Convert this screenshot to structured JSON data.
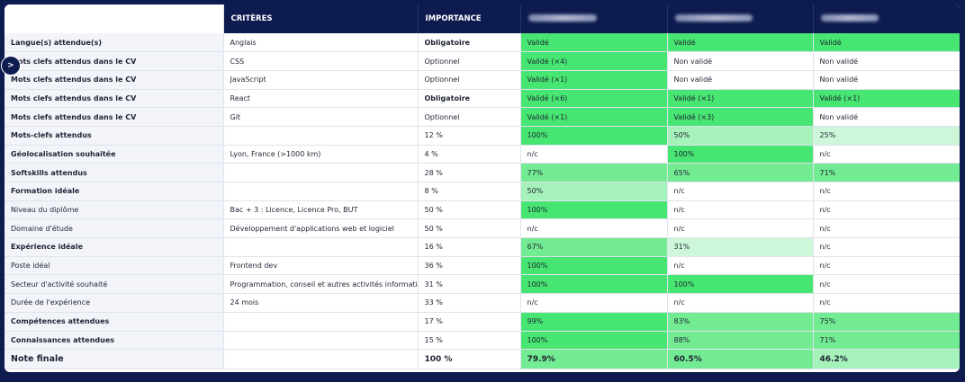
{
  "colors": {
    "navy": "#0d1b4f",
    "green_strong": "#47e572",
    "green_mid": "#72eb92",
    "green_soft": "#a6f2bb",
    "green_pale": "#cdf7d8"
  },
  "toggle": {
    "label": ">",
    "icon": "chevron-right-icon"
  },
  "header": {
    "criteres": "CRITÈRES",
    "importance": "IMPORTANCE",
    "candidates": [
      "",
      "",
      ""
    ]
  },
  "rows": [
    {
      "crit": "Langue(s) attendue(s)",
      "crit_bold": true,
      "value": "Anglais",
      "importance": "Obligatoire",
      "imp_bold": true,
      "cells": [
        {
          "text": "Validé",
          "level": "strong"
        },
        {
          "text": "Validé",
          "level": "strong"
        },
        {
          "text": "Validé",
          "level": "strong"
        }
      ]
    },
    {
      "crit": "Mots clefs attendus dans le CV",
      "crit_bold": true,
      "value": "CSS",
      "importance": "Optionnel",
      "imp_bold": false,
      "cells": [
        {
          "text": "Validé (×4)",
          "level": "strong"
        },
        {
          "text": "Non validé",
          "level": "none"
        },
        {
          "text": "Non validé",
          "level": "none"
        }
      ]
    },
    {
      "crit": "Mots clefs attendus dans le CV",
      "crit_bold": true,
      "value": "JavaScript",
      "importance": "Optionnel",
      "imp_bold": false,
      "cells": [
        {
          "text": "Validé (×1)",
          "level": "strong"
        },
        {
          "text": "Non validé",
          "level": "none"
        },
        {
          "text": "Non validé",
          "level": "none"
        }
      ]
    },
    {
      "crit": "Mots clefs attendus dans le CV",
      "crit_bold": true,
      "value": "React",
      "importance": "Obligatoire",
      "imp_bold": true,
      "cells": [
        {
          "text": "Validé (×6)",
          "level": "strong"
        },
        {
          "text": "Validé (×1)",
          "level": "strong"
        },
        {
          "text": "Validé (×1)",
          "level": "strong"
        }
      ]
    },
    {
      "crit": "Mots clefs attendus dans le CV",
      "crit_bold": true,
      "value": "Git",
      "importance": "Optionnel",
      "imp_bold": false,
      "cells": [
        {
          "text": "Validé (×1)",
          "level": "strong"
        },
        {
          "text": "Validé (×3)",
          "level": "strong"
        },
        {
          "text": "Non validé",
          "level": "none"
        }
      ]
    },
    {
      "crit": "Mots-clefs attendus",
      "crit_bold": true,
      "value": "",
      "importance": "12 %",
      "imp_bold": false,
      "cells": [
        {
          "text": "100%",
          "level": "strong"
        },
        {
          "text": "50%",
          "level": "soft"
        },
        {
          "text": "25%",
          "level": "pale"
        }
      ]
    },
    {
      "crit": "Géolocalisation souhaitée",
      "crit_bold": true,
      "value": "Lyon, France (>1000 km)",
      "importance": "4 %",
      "imp_bold": false,
      "cells": [
        {
          "text": "n/c",
          "level": "none"
        },
        {
          "text": "100%",
          "level": "strong"
        },
        {
          "text": "n/c",
          "level": "none"
        }
      ]
    },
    {
      "crit": "Softskills attendus",
      "crit_bold": true,
      "value": "",
      "importance": "28 %",
      "imp_bold": false,
      "cells": [
        {
          "text": "77%",
          "level": "mid"
        },
        {
          "text": "65%",
          "level": "mid"
        },
        {
          "text": "71%",
          "level": "mid"
        }
      ]
    },
    {
      "crit": "Formation idéale",
      "crit_bold": true,
      "value": "",
      "importance": "8 %",
      "imp_bold": false,
      "cells": [
        {
          "text": "50%",
          "level": "soft"
        },
        {
          "text": "n/c",
          "level": "none"
        },
        {
          "text": "n/c",
          "level": "none"
        }
      ]
    },
    {
      "crit": "Niveau du diplôme",
      "crit_bold": false,
      "value": "Bac + 3 : Licence, Licence Pro, BUT",
      "importance": "50 %",
      "imp_bold": false,
      "cells": [
        {
          "text": "100%",
          "level": "strong"
        },
        {
          "text": "n/c",
          "level": "none"
        },
        {
          "text": "n/c",
          "level": "none"
        }
      ]
    },
    {
      "crit": "Domaine d'étude",
      "crit_bold": false,
      "value": "Développement d'applications web et logiciel",
      "importance": "50 %",
      "imp_bold": false,
      "cells": [
        {
          "text": "n/c",
          "level": "none"
        },
        {
          "text": "n/c",
          "level": "none"
        },
        {
          "text": "n/c",
          "level": "none"
        }
      ]
    },
    {
      "crit": "Expérience idéale",
      "crit_bold": true,
      "value": "",
      "importance": "16 %",
      "imp_bold": false,
      "cells": [
        {
          "text": "67%",
          "level": "mid"
        },
        {
          "text": "31%",
          "level": "pale"
        },
        {
          "text": "n/c",
          "level": "none"
        }
      ]
    },
    {
      "crit": "Poste idéal",
      "crit_bold": false,
      "value": "Frontend dev",
      "importance": "36 %",
      "imp_bold": false,
      "cells": [
        {
          "text": "100%",
          "level": "strong"
        },
        {
          "text": "n/c",
          "level": "none"
        },
        {
          "text": "n/c",
          "level": "none"
        }
      ]
    },
    {
      "crit": "Secteur d'activité souhaité",
      "crit_bold": false,
      "value": "Programmation, conseil et autres activités informatiques",
      "importance": "31 %",
      "imp_bold": false,
      "cells": [
        {
          "text": "100%",
          "level": "strong"
        },
        {
          "text": "100%",
          "level": "strong"
        },
        {
          "text": "n/c",
          "level": "none"
        }
      ]
    },
    {
      "crit": "Durée de l'expérience",
      "crit_bold": false,
      "value": "24 mois",
      "importance": "33 %",
      "imp_bold": false,
      "cells": [
        {
          "text": "n/c",
          "level": "none"
        },
        {
          "text": "n/c",
          "level": "none"
        },
        {
          "text": "n/c",
          "level": "none"
        }
      ]
    },
    {
      "crit": "Compétences attendues",
      "crit_bold": true,
      "value": "",
      "importance": "17 %",
      "imp_bold": false,
      "cells": [
        {
          "text": "99%",
          "level": "strong"
        },
        {
          "text": "83%",
          "level": "mid"
        },
        {
          "text": "75%",
          "level": "mid"
        }
      ]
    },
    {
      "crit": "Connaissances attendues",
      "crit_bold": true,
      "value": "",
      "importance": "15 %",
      "imp_bold": false,
      "cells": [
        {
          "text": "100%",
          "level": "strong"
        },
        {
          "text": "88%",
          "level": "mid"
        },
        {
          "text": "71%",
          "level": "mid"
        }
      ]
    },
    {
      "crit": "Note finale",
      "crit_bold": true,
      "value": "",
      "importance": "100 %",
      "imp_bold": false,
      "final": true,
      "cells": [
        {
          "text": "79.9%",
          "level": "mid"
        },
        {
          "text": "60.5%",
          "level": "mid"
        },
        {
          "text": "46.2%",
          "level": "soft"
        }
      ]
    }
  ]
}
